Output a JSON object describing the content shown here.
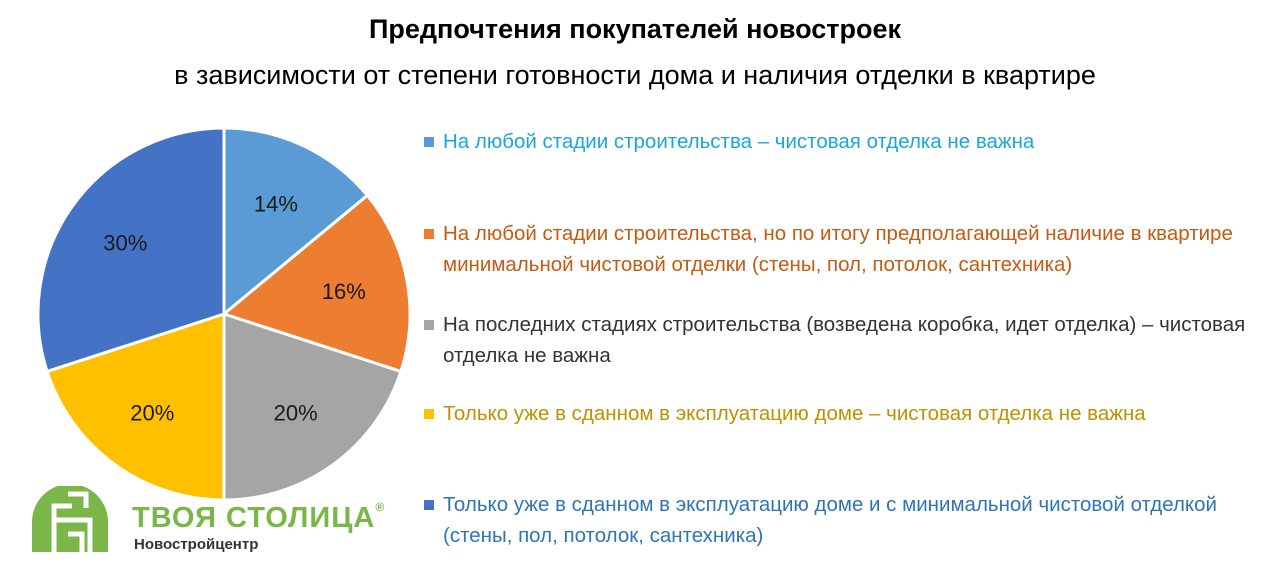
{
  "header": {
    "title": "Предпочтения покупателей новостроек",
    "subtitle": "в зависимости от степени готовности дома и наличия отделки в квартире"
  },
  "chart_data": {
    "type": "pie",
    "title": "Предпочтения покупателей новостроек",
    "subtitle": "в зависимости от степени готовности дома и наличия отделки в квартире",
    "legend_placement": "right",
    "slices": [
      {
        "label": "На любой стадии строительства – чистовая отделка не важна",
        "value": 14,
        "value_label": "14%",
        "color": "#5b9bd5",
        "legend_text_color": "#1aa7d6"
      },
      {
        "label": "На любой стадии строительства, но по итогу предполагающей наличие в квартире минимальной чистовой отделки (стены, пол, потолок, сантехника)",
        "value": 16,
        "value_label": "16%",
        "color": "#ed7d31",
        "legend_text_color": "#c55a11"
      },
      {
        "label": "На последних стадиях строительства (возведена коробка, идет отделка) – чистовая отделка не важна",
        "value": 20,
        "value_label": "20%",
        "color": "#a5a5a5",
        "legend_text_color": "#333333"
      },
      {
        "label": "Только уже в сданном в эксплуатацию доме – чистовая отделка не важна",
        "value": 20,
        "value_label": "20%",
        "color": "#ffc000",
        "legend_text_color": "#bf9000"
      },
      {
        "label": "Только уже в сданном в эксплуатацию доме и с минимальной чистовой отделкой (стены, пол, потолок, сантехника)",
        "value": 30,
        "value_label": "30%",
        "color": "#4472c4",
        "legend_text_color": "#2e75b6"
      }
    ]
  },
  "logo": {
    "name": "ТВОЯ СТОЛИЦА",
    "registered_mark": "®",
    "subtitle": "Новостройцентр",
    "color": "#7ab648"
  }
}
